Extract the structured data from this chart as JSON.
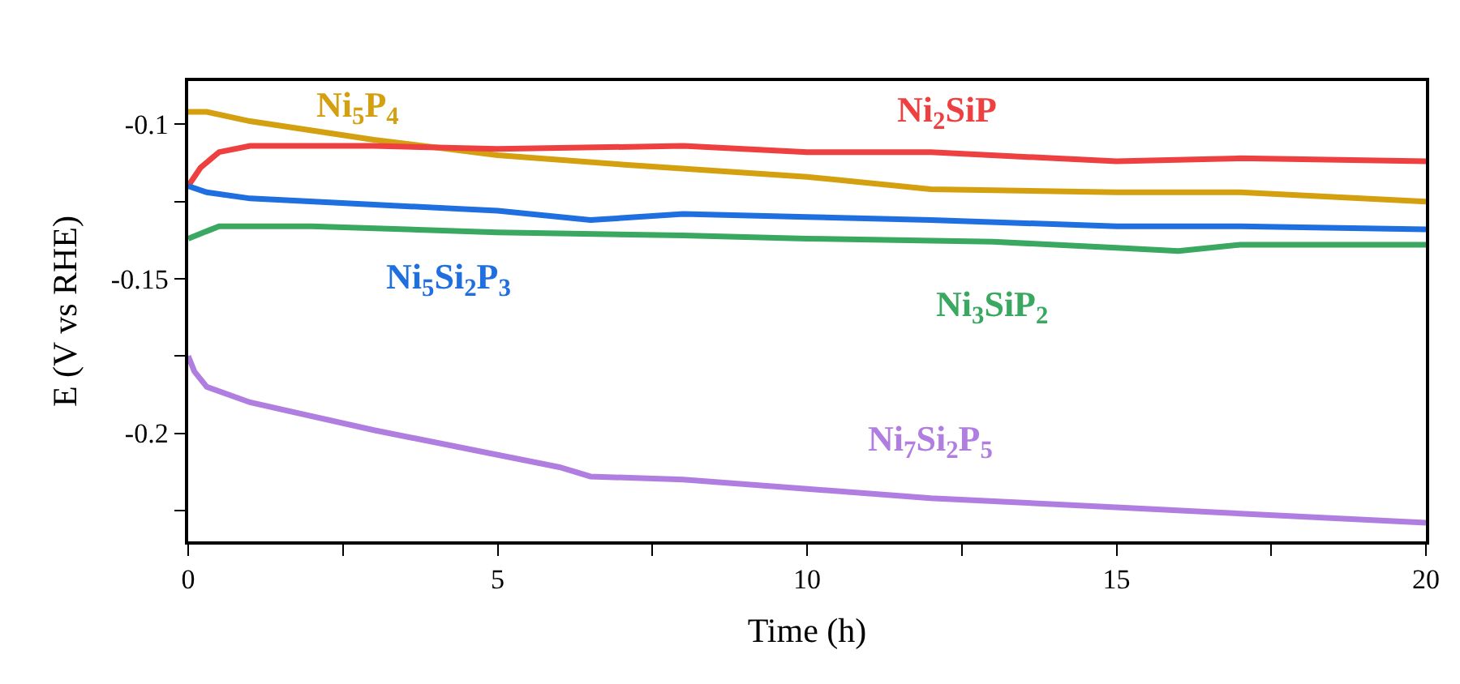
{
  "chart_data": {
    "type": "line",
    "xlabel": "Time (h)",
    "ylabel": "E (V vs RHE)",
    "xlim": [
      0,
      20
    ],
    "ylim": [
      -0.235,
      -0.086
    ],
    "xticks": [
      0,
      {
        "value": 2.5,
        "label": null
      },
      5,
      {
        "value": 7.5,
        "label": null
      },
      10,
      {
        "value": 12.5,
        "label": null
      },
      15,
      {
        "value": 17.5,
        "label": null
      },
      20
    ],
    "yticks": [
      {
        "value": -0.225,
        "label": null
      },
      -0.2,
      {
        "value": -0.175,
        "label": null
      },
      -0.15,
      {
        "value": -0.125,
        "label": null
      },
      -0.1
    ],
    "legend": false,
    "marker": "none",
    "line_style": "solid",
    "series": [
      {
        "name": "Ni$_{5}$P$_{4}$",
        "color": "#d4a010",
        "x": [
          0,
          0.3,
          1,
          3,
          5,
          7,
          10,
          12,
          15,
          17,
          20
        ],
        "values": [
          -0.096,
          -0.096,
          -0.099,
          -0.105,
          -0.11,
          -0.113,
          -0.117,
          -0.121,
          -0.122,
          -0.122,
          -0.125
        ]
      },
      {
        "name": "Ni$_{2}$SiP",
        "color": "#ee4040",
        "x": [
          0,
          0.2,
          0.5,
          1,
          3,
          5,
          8,
          10,
          12,
          14,
          15,
          17,
          20
        ],
        "values": [
          -0.12,
          -0.114,
          -0.109,
          -0.107,
          -0.107,
          -0.108,
          -0.107,
          -0.109,
          -0.109,
          -0.111,
          -0.112,
          -0.111,
          -0.112
        ]
      },
      {
        "name": "Ni$_{5}$Si$_{2}$P$_{3}$",
        "color": "#1f6fe0",
        "x": [
          0,
          0.3,
          1,
          3,
          5,
          6.5,
          8,
          10,
          12,
          15,
          17,
          20
        ],
        "values": [
          -0.12,
          -0.122,
          -0.124,
          -0.126,
          -0.128,
          -0.131,
          -0.129,
          -0.13,
          -0.131,
          -0.133,
          -0.133,
          -0.134
        ]
      },
      {
        "name": "Ni$_{3}$SiP$_{2}$",
        "color": "#3aa860",
        "x": [
          0,
          0.5,
          2,
          5,
          8,
          10,
          13,
          15,
          16,
          17,
          20
        ],
        "values": [
          -0.137,
          -0.133,
          -0.133,
          -0.135,
          -0.136,
          -0.137,
          -0.138,
          -0.14,
          -0.141,
          -0.139,
          -0.139
        ]
      },
      {
        "name": "Ni$_{7}$Si$_{2}$P$_{5}$",
        "color": "#b07ee0",
        "x": [
          0,
          0.1,
          0.3,
          1,
          3,
          5,
          6,
          6.5,
          8,
          10,
          12,
          15,
          17,
          20
        ],
        "values": [
          -0.175,
          -0.18,
          -0.185,
          -0.19,
          -0.199,
          -0.207,
          -0.211,
          -0.214,
          -0.215,
          -0.218,
          -0.221,
          -0.224,
          -0.226,
          -0.229
        ]
      }
    ]
  }
}
